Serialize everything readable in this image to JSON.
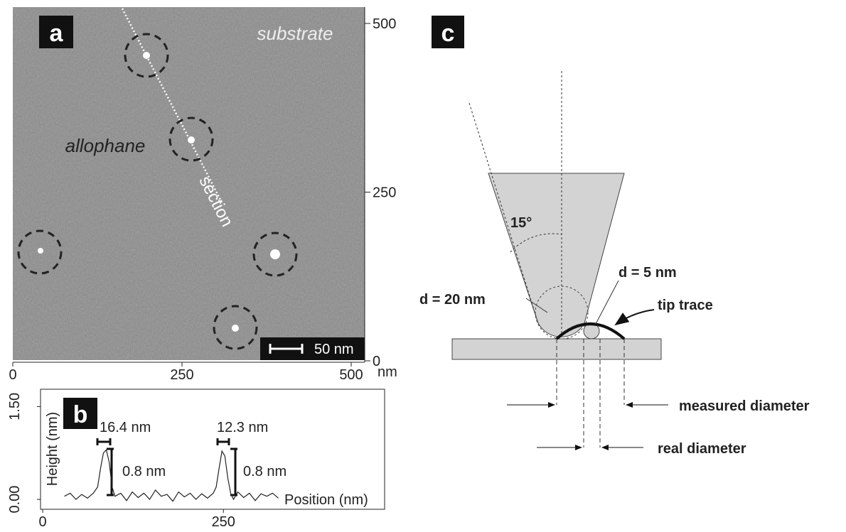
{
  "panel_a": {
    "label": "a",
    "annotations": [
      "substrate",
      "allophane",
      "section"
    ],
    "scale_bar": "50 nm",
    "unit": "nm",
    "right_ticks": [
      0,
      250,
      500
    ],
    "right_lim": [
      0,
      500
    ],
    "bottom_ticks": [
      0,
      250,
      500
    ],
    "bottom_lim": [
      0,
      500
    ]
  },
  "panel_b": {
    "label": "b",
    "ylabel": "Height (nm)",
    "xlabel": "Position (nm)",
    "xlim": [
      -3,
      473
    ],
    "ylim": [
      -0.16,
      1.78
    ],
    "xticks": [
      0,
      250
    ],
    "yticks": [
      {
        "value": 0,
        "label": "0.00"
      },
      {
        "value": 1.5,
        "label": "1.50"
      }
    ],
    "peaks": [
      {
        "width": "16.4 nm",
        "height": "0.8 nm"
      },
      {
        "width": "12.3 nm",
        "height": "0.8 nm"
      }
    ],
    "profile": {
      "x": [
        30,
        38,
        46,
        54,
        62,
        70,
        76,
        80,
        84,
        88,
        92,
        96,
        100,
        108,
        116,
        124,
        132,
        140,
        148,
        156,
        164,
        172,
        180,
        188,
        196,
        204,
        212,
        220,
        228,
        236,
        240,
        244,
        248,
        252,
        256,
        260,
        264,
        270,
        278,
        286,
        294,
        302,
        310,
        318,
        326
      ],
      "y": [
        0.05,
        0.1,
        0.0,
        0.08,
        0.02,
        0.1,
        0.2,
        0.5,
        0.75,
        0.8,
        0.6,
        0.2,
        0.05,
        0.1,
        -0.02,
        0.12,
        0.03,
        0.1,
        0.0,
        0.15,
        0.05,
        0.08,
        -0.03,
        0.12,
        0.04,
        0.1,
        0.0,
        0.09,
        0.02,
        0.1,
        0.2,
        0.5,
        0.78,
        0.7,
        0.35,
        0.1,
        0.0,
        0.12,
        0.03,
        0.1,
        -0.02,
        0.09,
        0.05,
        0.1,
        0.02
      ]
    }
  },
  "panel_c": {
    "label": "c",
    "angle": "15°",
    "tip_diameter": "d = 20 nm",
    "particle_diameter": "d = 5 nm",
    "tip_trace": "tip trace",
    "measured": "measured diameter",
    "real": "real diameter"
  }
}
